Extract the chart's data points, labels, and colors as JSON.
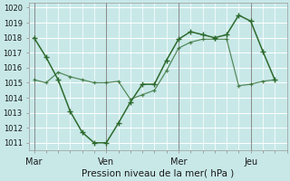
{
  "xlabel": "Pression niveau de la mer( hPa )",
  "bg_color": "#c8e8e8",
  "grid_color": "#ffffff",
  "line_color": "#2d6a2d",
  "ylim": [
    1010.5,
    1020.3
  ],
  "xlim": [
    -0.2,
    10.5
  ],
  "yticks": [
    1011,
    1012,
    1013,
    1014,
    1015,
    1016,
    1017,
    1018,
    1019,
    1020
  ],
  "day_labels": [
    "Mar",
    "Ven",
    "Mer",
    "Jeu"
  ],
  "day_positions": [
    0.0,
    3.0,
    6.0,
    9.0
  ],
  "line1_x": [
    0,
    0.5,
    1.0,
    1.5,
    2.0,
    2.5,
    3.0,
    3.5,
    4.0,
    4.5,
    5.0,
    5.5,
    6.0,
    6.5,
    7.0,
    7.5,
    8.0,
    8.5,
    9.0,
    9.5,
    10.0
  ],
  "line1_y": [
    1018.0,
    1016.7,
    1015.2,
    1013.1,
    1011.7,
    1011.0,
    1011.0,
    1012.3,
    1013.7,
    1014.9,
    1014.9,
    1016.5,
    1017.9,
    1018.4,
    1018.2,
    1018.0,
    1018.2,
    1019.5,
    1019.1,
    1017.1,
    1015.2
  ],
  "line2_x": [
    0,
    0.5,
    1.0,
    1.5,
    2.0,
    2.5,
    3.0,
    3.5,
    4.0,
    4.5,
    5.0,
    5.5,
    6.0,
    6.5,
    7.0,
    7.5,
    8.0,
    8.5,
    9.0,
    9.5,
    10.0
  ],
  "line2_y": [
    1015.2,
    1015.0,
    1015.7,
    1015.4,
    1015.2,
    1015.0,
    1015.0,
    1015.1,
    1013.9,
    1014.2,
    1014.5,
    1015.8,
    1017.3,
    1017.7,
    1017.9,
    1017.9,
    1017.9,
    1014.8,
    1014.9,
    1015.1,
    1015.2
  ]
}
